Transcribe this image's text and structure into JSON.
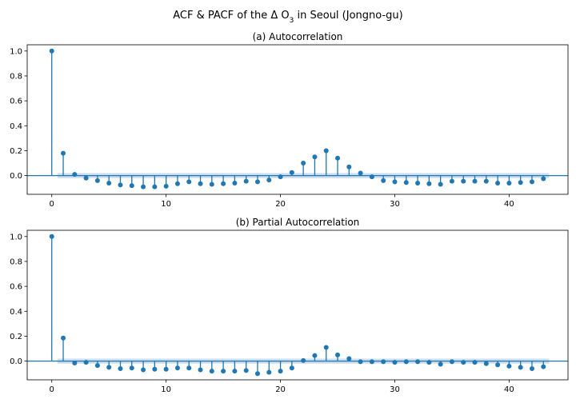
{
  "figure": {
    "title_prefix": "ACF & PACF of the Δ O",
    "title_sub": "3",
    "title_suffix": " in Seoul (Jongno-gu)"
  },
  "colors": {
    "stem": "#1f77b4",
    "band": "#a9c6e3",
    "zero": "#1f77b4",
    "axis": "#000000"
  },
  "chart_data": [
    {
      "type": "stem",
      "title": "(a) Autocorrelation",
      "xlabel": "",
      "ylabel": "",
      "xlim": [
        -2.15,
        45.15
      ],
      "ylim": [
        -0.15,
        1.05
      ],
      "xticks": [
        0,
        10,
        20,
        30,
        40
      ],
      "yticks": [
        0.0,
        0.2,
        0.4,
        0.6,
        0.8,
        1.0
      ],
      "ytick_labels": [
        "0.0",
        "0.2",
        "0.4",
        "0.6",
        "0.8",
        "1.0"
      ],
      "confidence_band": 0.02,
      "lags": [
        0,
        1,
        2,
        3,
        4,
        5,
        6,
        7,
        8,
        9,
        10,
        11,
        12,
        13,
        14,
        15,
        16,
        17,
        18,
        19,
        20,
        21,
        22,
        23,
        24,
        25,
        26,
        27,
        28,
        29,
        30,
        31,
        32,
        33,
        34,
        35,
        36,
        37,
        38,
        39,
        40,
        41,
        42,
        43
      ],
      "values": [
        1.0,
        0.18,
        0.01,
        -0.02,
        -0.04,
        -0.06,
        -0.075,
        -0.08,
        -0.09,
        -0.09,
        -0.085,
        -0.065,
        -0.05,
        -0.065,
        -0.07,
        -0.065,
        -0.06,
        -0.045,
        -0.05,
        -0.035,
        -0.01,
        0.025,
        0.1,
        0.15,
        0.2,
        0.14,
        0.07,
        0.02,
        -0.01,
        -0.04,
        -0.05,
        -0.055,
        -0.06,
        -0.065,
        -0.07,
        -0.045,
        -0.045,
        -0.045,
        -0.045,
        -0.06,
        -0.06,
        -0.055,
        -0.05,
        -0.025
      ]
    },
    {
      "type": "stem",
      "title": "(b) Partial Autocorrelation",
      "xlabel": "",
      "ylabel": "",
      "xlim": [
        -2.15,
        45.15
      ],
      "ylim": [
        -0.15,
        1.05
      ],
      "xticks": [
        0,
        10,
        20,
        30,
        40
      ],
      "yticks": [
        0.0,
        0.2,
        0.4,
        0.6,
        0.8,
        1.0
      ],
      "ytick_labels": [
        "0.0",
        "0.2",
        "0.4",
        "0.6",
        "0.8",
        "1.0"
      ],
      "confidence_band": 0.02,
      "lags": [
        0,
        1,
        2,
        3,
        4,
        5,
        6,
        7,
        8,
        9,
        10,
        11,
        12,
        13,
        14,
        15,
        16,
        17,
        18,
        19,
        20,
        21,
        22,
        23,
        24,
        25,
        26,
        27,
        28,
        29,
        30,
        31,
        32,
        33,
        34,
        35,
        36,
        37,
        38,
        39,
        40,
        41,
        42,
        43
      ],
      "values": [
        1.0,
        0.185,
        -0.015,
        -0.01,
        -0.035,
        -0.05,
        -0.06,
        -0.055,
        -0.07,
        -0.065,
        -0.065,
        -0.055,
        -0.055,
        -0.07,
        -0.08,
        -0.08,
        -0.08,
        -0.075,
        -0.1,
        -0.09,
        -0.08,
        -0.055,
        0.005,
        0.045,
        0.11,
        0.05,
        0.02,
        -0.005,
        -0.005,
        -0.005,
        -0.01,
        -0.005,
        -0.005,
        -0.01,
        -0.025,
        -0.005,
        -0.01,
        -0.01,
        -0.02,
        -0.03,
        -0.04,
        -0.05,
        -0.06,
        -0.045
      ]
    }
  ]
}
